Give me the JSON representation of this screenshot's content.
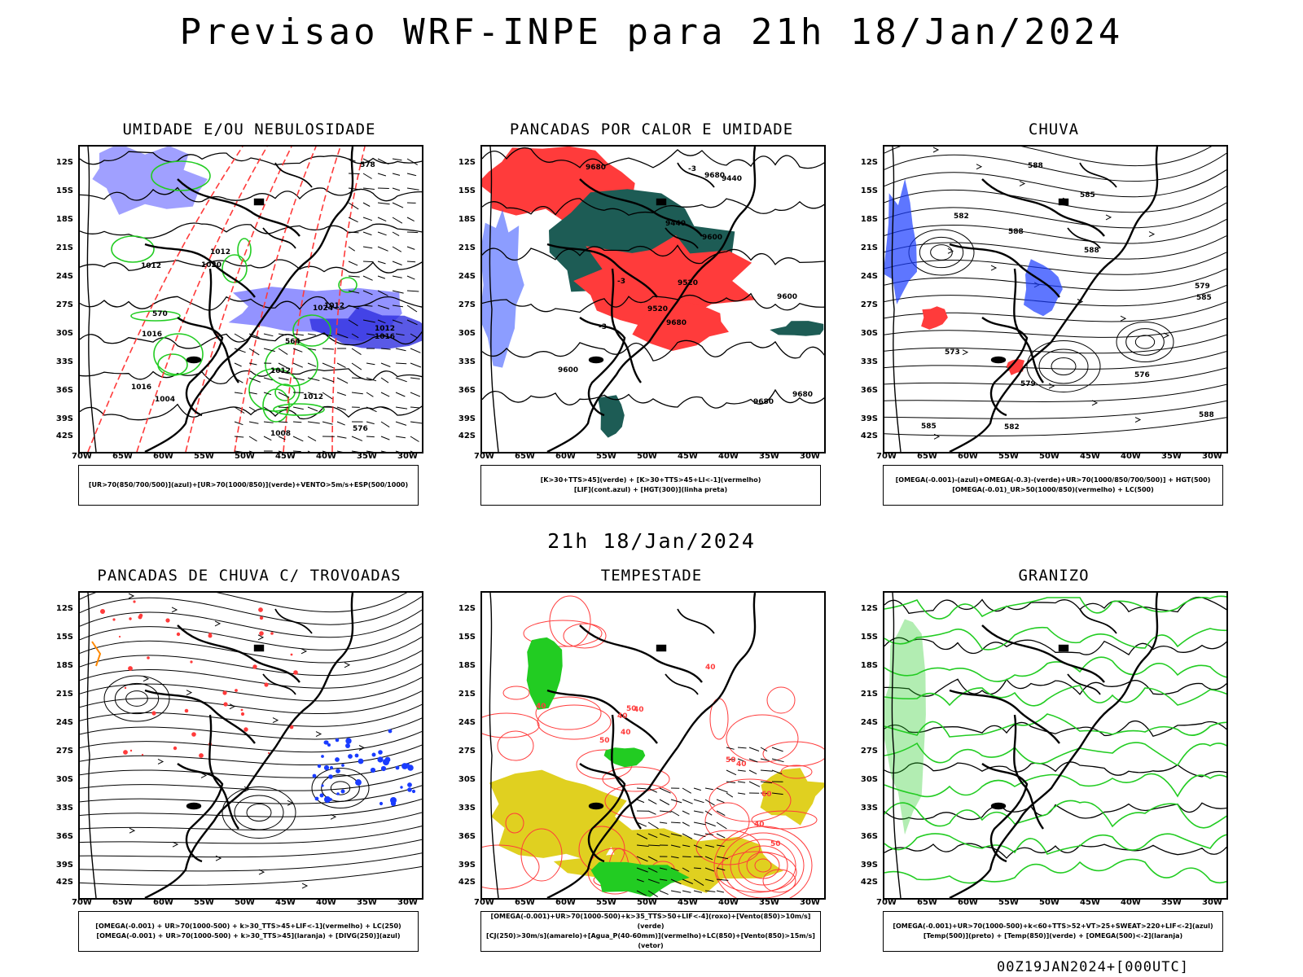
{
  "main_title": "Previsao WRF-INPE  para 21h 18/Jan/2024",
  "mid_time": "21h 18/Jan/2024",
  "footer_stamp": "00Z19JAN2024+[000UTC]",
  "axes": {
    "lat_ticks": [
      "12S",
      "15S",
      "18S",
      "21S",
      "24S",
      "27S",
      "30S",
      "33S",
      "36S",
      "39S",
      "42S"
    ],
    "lon_ticks": [
      "70W",
      "65W",
      "60W",
      "55W",
      "50W",
      "45W",
      "40W",
      "35W",
      "30W"
    ]
  },
  "colors": {
    "humid_blue": "#8080ff",
    "green": "#22cc22",
    "red": "#ff3b3b",
    "dark_teal": "#1d5c55",
    "blue": "#1a3cff",
    "orange": "#ff8800",
    "yellow": "#e0d020"
  },
  "panels": [
    {
      "id": "umidade",
      "title": "UMIDADE E/OU NEBULOSIDADE",
      "legend": [
        "[UR>70(850/700/500)](azul)+[UR>70(1000/850)](verde)+VENTO>5m/s+ESP(500/1000)"
      ],
      "contour_labels": [
        "1012",
        "1012",
        "1016",
        "1012",
        "1016",
        "1016",
        "1012",
        "1012",
        "1024",
        "1020",
        "1008",
        "1004",
        "1012",
        "578",
        "576",
        "570",
        "564"
      ]
    },
    {
      "id": "pancadas_calor",
      "title": "PANCADAS POR CALOR E UMIDADE",
      "legend": [
        "[K>30+TTS>45](verde) + [K>30+TTS>45+LI<-1](vermelho)",
        "[LIF](cont.azul) + [HGT(300)](linha preta)"
      ],
      "contour_labels": [
        "9680",
        "9680",
        "9680",
        "9680",
        "9680",
        "9600",
        "9600",
        "9600",
        "9520",
        "9520",
        "9440",
        "9440",
        "-3",
        "-3",
        "-3"
      ]
    },
    {
      "id": "chuva",
      "title": "CHUVA",
      "legend": [
        "[OMEGA(-0.001)-(azul)+OMEGA(-0.3)-(verde)+UR>70(1000/850/700/500)] + HGT(500)",
        "[OMEGA(-0.01)_UR>50(1000/850)(vermelho) + LC(500)"
      ],
      "contour_labels": [
        "588",
        "588",
        "588",
        "585",
        "585",
        "585",
        "582",
        "582",
        "579",
        "579",
        "576",
        "573",
        "588"
      ]
    },
    {
      "id": "trovoadas",
      "title": "PANCADAS DE CHUVA C/ TROVOADAS",
      "legend": [
        "[OMEGA(-0.001) + UR>70(1000-500) + k>30_TTS>45+LIF<-1](vermelho) + LC(250)",
        "[OMEGA(-0.001) + UR>70(1000-500) + k>30_TTS>45](laranja) + [DIVG(250)](azul)"
      ],
      "contour_labels": []
    },
    {
      "id": "tempestade",
      "title": "TEMPESTADE",
      "legend": [
        "[OMEGA(-0.001)+UR>70(1000-500)+k>35_TTS>50+LIF<-4](roxo)+[Vento(850)>10m/s](verde)",
        "[CJ(250)>30m/s](amarelo)+[Agua_P(40-60mm)](vermelho)+LC(850)+[Vento(850)>15m/s](vetor)"
      ],
      "contour_labels": [
        "50",
        "40",
        "40",
        "50",
        "40",
        "60",
        "40",
        "50",
        "40",
        "40",
        "50",
        "40"
      ]
    },
    {
      "id": "granizo",
      "title": "GRANIZO",
      "legend": [
        "[OMEGA(-0.001)+UR>70(1000-500)+k<60+TTS>52+VT>25+SWEAT>220+LIF<-2](azul)",
        "[Temp(500)](preto) + [Temp(850)](verde) + [OMEGA(500)<-2](laranja)"
      ],
      "contour_labels": []
    }
  ]
}
